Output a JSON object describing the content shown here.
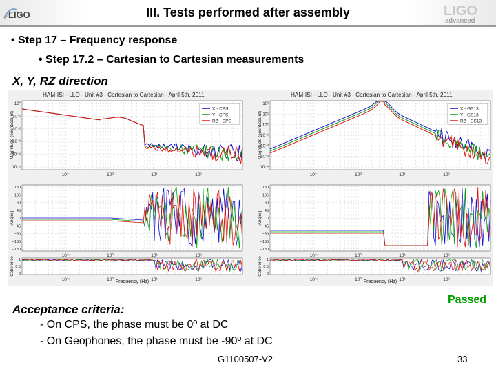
{
  "slide": {
    "title": "III. Tests performed after assembly",
    "bullet1": "• Step 17 – Frequency response",
    "bullet2": "•   Step 17.2 – Cartesian to Cartesian measurements",
    "section": "X, Y, RZ direction",
    "criteria_title": "Acceptance criteria:",
    "criteria_lines": [
      "- On CPS, the phase must be 0º at DC",
      "- On Geophones, the phase must be -90º at DC"
    ],
    "passed": "Passed",
    "footer_id": "G1100507-V2",
    "page_number": "33"
  },
  "logos": {
    "left": "LIGO",
    "right_top": "advanced",
    "right_bottom": "LIGO"
  },
  "colors": {
    "x": "#1010d0",
    "y": "#10a010",
    "rz": "#e01010",
    "passed": "#00a000"
  },
  "chart_data": [
    {
      "type": "line",
      "title": "HAM-ISI - LLO - Unit #3 - Cartesian to Cartesian - April 5th, 2011",
      "xlabel": "Frequency (Hz)",
      "ylabel_magnitude": "Magnitude (count/count)",
      "ylabel_phase": "Angle()",
      "ylabel_coherence": "Coherence",
      "x_scale": "log",
      "magnitude_ticks": [
        "10⁰",
        "10⁻¹",
        "10⁻²",
        "10⁻³",
        "10⁻⁴",
        "10⁻⁵"
      ],
      "phase_ticks": [
        "180",
        "135",
        "90",
        "45",
        "0",
        "−45",
        "−90",
        "−135",
        "−180"
      ],
      "coherence_ticks": [
        "1",
        "0.5",
        "0"
      ],
      "x_ticks": [
        "10⁻¹",
        "10⁰",
        "10¹",
        "10²"
      ],
      "legend_position": "top-right",
      "series": [
        {
          "name": "X - CPS",
          "color": "#1010d0"
        },
        {
          "name": "Y - CPS",
          "color": "#10a010"
        },
        {
          "name": "RZ - CPS",
          "color": "#e01010"
        }
      ]
    },
    {
      "type": "line",
      "title": "HAM-ISI - LLO - Unit #3 - Cartesian to Cartesian - April 5th, 2011",
      "xlabel": "Frequency (Hz)",
      "ylabel_magnitude": "Magnitude (count/count)",
      "ylabel_phase": "Angle()",
      "ylabel_coherence": "Coherence",
      "x_scale": "log",
      "magnitude_ticks": [
        "10²",
        "10¹",
        "10⁰",
        "10⁻¹",
        "10⁻²",
        "10⁻³",
        "10⁻⁴"
      ],
      "phase_ticks": [
        "180",
        "135",
        "90",
        "45",
        "0",
        "−45",
        "−90",
        "−135",
        "−180"
      ],
      "coherence_ticks": [
        "1",
        "0.5",
        "0"
      ],
      "x_ticks": [
        "10⁻¹",
        "10⁰",
        "10¹",
        "10²"
      ],
      "legend_position": "top-right",
      "series": [
        {
          "name": "X - GS13",
          "color": "#1010d0"
        },
        {
          "name": "Y - GS13",
          "color": "#10a010"
        },
        {
          "name": "RZ - GS13",
          "color": "#e01010"
        }
      ]
    }
  ]
}
